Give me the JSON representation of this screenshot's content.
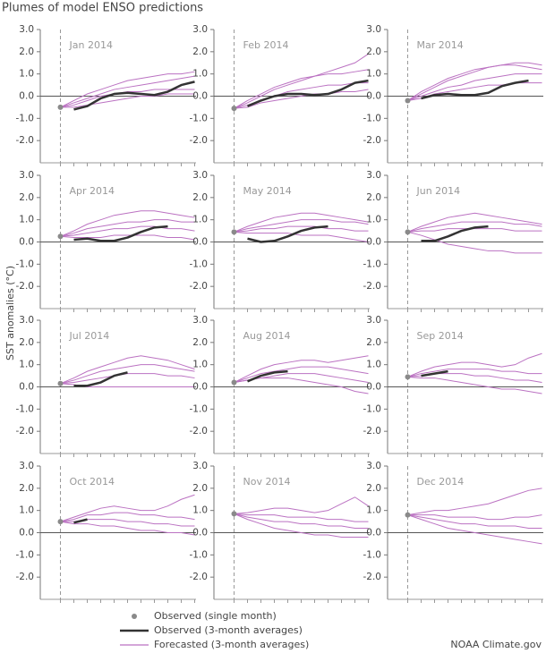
{
  "chart_data": {
    "type": "plume_grid",
    "title": "Plumes of model ENSO predictions",
    "y_label": "SST anomalies (°C)",
    "source": "NOAA Climate.gov",
    "ylim": [
      -3,
      3
    ],
    "yticks": [
      {
        "value": 3,
        "label": "3.0"
      },
      {
        "value": 2,
        "label": "2.0"
      },
      {
        "value": 1,
        "label": "1.0"
      },
      {
        "value": 0,
        "label": "0.0"
      },
      {
        "value": -1,
        "label": "-1.0"
      },
      {
        "value": -2,
        "label": "-2.0"
      }
    ],
    "xlim": [
      -1.5,
      10.1
    ],
    "xticks": [
      0,
      1,
      2,
      3,
      4,
      5,
      6,
      7,
      8,
      9,
      10
    ],
    "forecast_x": [
      0,
      1,
      2,
      3,
      4,
      5,
      6,
      7,
      8,
      9,
      10
    ],
    "legend_labels": {
      "observed_month": "Observed (single month)",
      "observed_3mo": "Observed (3-month averages)",
      "forecast": "Forecasted (3-month averages)"
    },
    "colors": {
      "observed_month": "#8a8a8a",
      "observed_3mo": "#333333",
      "forecast": "#bb72c2"
    },
    "panels": [
      {
        "label": "Jan 2014",
        "observed_month": {
          "x": 0,
          "value": -0.5
        },
        "observed_3mo": {
          "x": [
            1,
            2,
            3,
            4,
            5,
            6,
            7,
            8,
            9,
            10
          ],
          "values": [
            -0.6,
            -0.45,
            -0.1,
            0.1,
            0.15,
            0.1,
            0.05,
            0.2,
            0.5,
            0.65
          ]
        },
        "forecasts": [
          [
            -0.5,
            -0.3,
            -0.1,
            0.1,
            0.3,
            0.4,
            0.5,
            0.6,
            0.7,
            0.8,
            0.9
          ],
          [
            -0.5,
            -0.4,
            -0.2,
            0.0,
            0.1,
            0.2,
            0.2,
            0.3,
            0.3,
            0.3,
            0.3
          ],
          [
            -0.5,
            -0.2,
            0.1,
            0.3,
            0.5,
            0.7,
            0.8,
            0.9,
            1.0,
            1.0,
            1.1
          ],
          [
            -0.5,
            -0.5,
            -0.4,
            -0.3,
            -0.2,
            -0.1,
            0.0,
            0.0,
            0.1,
            0.1,
            0.1
          ]
        ]
      },
      {
        "label": "Feb 2014",
        "observed_month": {
          "x": 0,
          "value": -0.55
        },
        "observed_3mo": {
          "x": [
            1,
            2,
            3,
            4,
            5,
            6,
            7,
            8,
            9,
            10
          ],
          "values": [
            -0.45,
            -0.2,
            0.0,
            0.1,
            0.1,
            0.05,
            0.1,
            0.3,
            0.6,
            0.7
          ]
        },
        "forecasts": [
          [
            -0.55,
            -0.3,
            0.0,
            0.3,
            0.5,
            0.7,
            0.9,
            1.1,
            1.3,
            1.5,
            1.9
          ],
          [
            -0.55,
            -0.4,
            -0.2,
            0.0,
            0.2,
            0.3,
            0.4,
            0.5,
            0.5,
            0.6,
            0.6
          ],
          [
            -0.55,
            -0.2,
            0.1,
            0.4,
            0.6,
            0.8,
            0.9,
            1.0,
            1.0,
            1.1,
            1.2
          ],
          [
            -0.55,
            -0.5,
            -0.3,
            -0.2,
            -0.1,
            0.0,
            0.1,
            0.1,
            0.2,
            0.2,
            0.3
          ]
        ]
      },
      {
        "label": "Mar 2014",
        "observed_month": {
          "x": 0,
          "value": -0.2
        },
        "observed_3mo": {
          "x": [
            1,
            2,
            3,
            4,
            5,
            6,
            7,
            8,
            9
          ],
          "values": [
            -0.1,
            0.05,
            0.1,
            0.05,
            0.05,
            0.15,
            0.45,
            0.6,
            0.7
          ]
        },
        "forecasts": [
          [
            -0.2,
            0.1,
            0.4,
            0.7,
            0.9,
            1.1,
            1.3,
            1.4,
            1.5,
            1.5,
            1.4
          ],
          [
            -0.2,
            0.0,
            0.2,
            0.4,
            0.5,
            0.7,
            0.8,
            0.9,
            1.0,
            1.0,
            1.0
          ],
          [
            -0.2,
            0.2,
            0.5,
            0.8,
            1.0,
            1.2,
            1.3,
            1.4,
            1.4,
            1.3,
            1.2
          ],
          [
            -0.2,
            -0.1,
            0.1,
            0.2,
            0.3,
            0.4,
            0.5,
            0.5,
            0.6,
            0.6,
            0.6
          ]
        ]
      },
      {
        "label": "Apr 2014",
        "observed_month": {
          "x": 0,
          "value": 0.25
        },
        "observed_3mo": {
          "x": [
            1,
            2,
            3,
            4,
            5,
            6,
            7,
            8
          ],
          "values": [
            0.1,
            0.15,
            0.05,
            0.05,
            0.2,
            0.45,
            0.65,
            0.7
          ]
        },
        "forecasts": [
          [
            0.25,
            0.5,
            0.8,
            1.0,
            1.2,
            1.3,
            1.4,
            1.4,
            1.3,
            1.2,
            1.1
          ],
          [
            0.25,
            0.4,
            0.6,
            0.7,
            0.8,
            0.9,
            0.9,
            1.0,
            1.0,
            0.9,
            0.9
          ],
          [
            0.25,
            0.3,
            0.4,
            0.5,
            0.6,
            0.6,
            0.7,
            0.7,
            0.6,
            0.6,
            0.5
          ],
          [
            0.25,
            0.2,
            0.2,
            0.2,
            0.3,
            0.3,
            0.3,
            0.3,
            0.2,
            0.2,
            0.1
          ]
        ]
      },
      {
        "label": "May 2014",
        "observed_month": {
          "x": 0,
          "value": 0.45
        },
        "observed_3mo": {
          "x": [
            1,
            2,
            3,
            4,
            5,
            6,
            7
          ],
          "values": [
            0.15,
            0.0,
            0.05,
            0.25,
            0.5,
            0.65,
            0.7
          ]
        },
        "forecasts": [
          [
            0.45,
            0.7,
            0.9,
            1.1,
            1.2,
            1.3,
            1.3,
            1.2,
            1.1,
            1.0,
            0.9
          ],
          [
            0.45,
            0.6,
            0.7,
            0.8,
            0.9,
            1.0,
            1.0,
            1.0,
            0.9,
            0.9,
            0.8
          ],
          [
            0.45,
            0.5,
            0.6,
            0.6,
            0.7,
            0.7,
            0.7,
            0.6,
            0.6,
            0.5,
            0.5
          ],
          [
            0.45,
            0.4,
            0.4,
            0.4,
            0.4,
            0.3,
            0.3,
            0.3,
            0.2,
            0.1,
            0.0
          ]
        ]
      },
      {
        "label": "Jun 2014",
        "observed_month": {
          "x": 0,
          "value": 0.45
        },
        "observed_3mo": {
          "x": [
            1,
            2,
            3,
            4,
            5,
            6
          ],
          "values": [
            0.05,
            0.05,
            0.25,
            0.5,
            0.65,
            0.7
          ]
        },
        "forecasts": [
          [
            0.45,
            0.7,
            0.9,
            1.1,
            1.2,
            1.3,
            1.2,
            1.1,
            1.0,
            0.9,
            0.8
          ],
          [
            0.45,
            0.6,
            0.7,
            0.8,
            0.9,
            0.9,
            0.9,
            0.9,
            0.8,
            0.8,
            0.7
          ],
          [
            0.45,
            0.5,
            0.5,
            0.6,
            0.6,
            0.6,
            0.6,
            0.6,
            0.5,
            0.5,
            0.5
          ],
          [
            0.45,
            0.3,
            0.1,
            -0.1,
            -0.2,
            -0.3,
            -0.4,
            -0.4,
            -0.5,
            -0.5,
            -0.5
          ]
        ]
      },
      {
        "label": "Jul 2014",
        "observed_month": {
          "x": 0,
          "value": 0.15
        },
        "observed_3mo": {
          "x": [
            1,
            2,
            3,
            4,
            5
          ],
          "values": [
            0.05,
            0.05,
            0.2,
            0.5,
            0.65
          ]
        },
        "forecasts": [
          [
            0.15,
            0.4,
            0.7,
            0.9,
            1.1,
            1.3,
            1.4,
            1.3,
            1.2,
            1.0,
            0.8
          ],
          [
            0.15,
            0.3,
            0.5,
            0.7,
            0.8,
            0.9,
            1.0,
            1.0,
            0.9,
            0.8,
            0.7
          ],
          [
            0.15,
            0.2,
            0.3,
            0.4,
            0.5,
            0.6,
            0.6,
            0.6,
            0.5,
            0.5,
            0.4
          ],
          [
            0.15,
            0.1,
            0.0,
            0.0,
            0.0,
            0.0,
            0.0,
            0.0,
            0.0,
            0.0,
            0.0
          ]
        ]
      },
      {
        "label": "Aug 2014",
        "observed_month": {
          "x": 0,
          "value": 0.2
        },
        "observed_3mo": {
          "x": [
            1,
            2,
            3,
            4
          ],
          "values": [
            0.25,
            0.5,
            0.65,
            0.7
          ]
        },
        "forecasts": [
          [
            0.2,
            0.5,
            0.8,
            1.0,
            1.1,
            1.2,
            1.2,
            1.1,
            1.2,
            1.3,
            1.4
          ],
          [
            0.2,
            0.4,
            0.6,
            0.7,
            0.8,
            0.9,
            0.9,
            0.9,
            0.8,
            0.7,
            0.6
          ],
          [
            0.2,
            0.3,
            0.4,
            0.5,
            0.6,
            0.6,
            0.6,
            0.5,
            0.4,
            0.3,
            0.2
          ],
          [
            0.2,
            0.3,
            0.4,
            0.4,
            0.4,
            0.3,
            0.2,
            0.1,
            0.0,
            -0.2,
            -0.3
          ]
        ]
      },
      {
        "label": "Sep 2014",
        "observed_month": {
          "x": 0,
          "value": 0.45
        },
        "observed_3mo": {
          "x": [
            1,
            2,
            3
          ],
          "values": [
            0.5,
            0.6,
            0.7
          ]
        },
        "forecasts": [
          [
            0.45,
            0.7,
            0.9,
            1.0,
            1.1,
            1.1,
            1.0,
            0.9,
            1.0,
            1.3,
            1.5
          ],
          [
            0.45,
            0.6,
            0.7,
            0.8,
            0.8,
            0.8,
            0.8,
            0.7,
            0.7,
            0.6,
            0.6
          ],
          [
            0.45,
            0.5,
            0.6,
            0.6,
            0.6,
            0.5,
            0.5,
            0.4,
            0.3,
            0.3,
            0.2
          ],
          [
            0.45,
            0.4,
            0.4,
            0.3,
            0.2,
            0.1,
            0.0,
            -0.1,
            -0.1,
            -0.2,
            -0.3
          ]
        ]
      },
      {
        "label": "Oct 2014",
        "observed_month": {
          "x": 0,
          "value": 0.5
        },
        "observed_3mo": {
          "x": [
            1,
            2
          ],
          "values": [
            0.45,
            0.6
          ]
        },
        "forecasts": [
          [
            0.5,
            0.7,
            0.9,
            1.1,
            1.2,
            1.1,
            1.0,
            1.0,
            1.2,
            1.5,
            1.7
          ],
          [
            0.5,
            0.6,
            0.8,
            0.8,
            0.9,
            0.9,
            0.8,
            0.8,
            0.7,
            0.7,
            0.6
          ],
          [
            0.5,
            0.5,
            0.6,
            0.6,
            0.6,
            0.5,
            0.5,
            0.4,
            0.4,
            0.3,
            0.3
          ],
          [
            0.5,
            0.4,
            0.4,
            0.3,
            0.3,
            0.2,
            0.1,
            0.1,
            0.0,
            0.0,
            -0.1
          ]
        ]
      },
      {
        "label": "Nov 2014",
        "observed_month": {
          "x": 0,
          "value": 0.85
        },
        "forecasts": [
          [
            0.85,
            0.9,
            1.0,
            1.1,
            1.1,
            1.0,
            0.9,
            1.0,
            1.3,
            1.6,
            1.2
          ],
          [
            0.85,
            0.8,
            0.8,
            0.8,
            0.7,
            0.7,
            0.7,
            0.6,
            0.6,
            0.5,
            0.5
          ],
          [
            0.85,
            0.7,
            0.6,
            0.5,
            0.5,
            0.4,
            0.4,
            0.3,
            0.3,
            0.2,
            0.2
          ],
          [
            0.85,
            0.6,
            0.4,
            0.2,
            0.1,
            0.0,
            -0.1,
            -0.1,
            -0.2,
            -0.2,
            -0.2
          ]
        ]
      },
      {
        "label": "Dec 2014",
        "observed_month": {
          "x": 0,
          "value": 0.8
        },
        "forecasts": [
          [
            0.8,
            0.9,
            1.0,
            1.0,
            1.1,
            1.2,
            1.3,
            1.5,
            1.7,
            1.9,
            2.0
          ],
          [
            0.8,
            0.8,
            0.8,
            0.7,
            0.7,
            0.7,
            0.6,
            0.6,
            0.7,
            0.7,
            0.8
          ],
          [
            0.8,
            0.7,
            0.6,
            0.5,
            0.4,
            0.4,
            0.3,
            0.3,
            0.3,
            0.2,
            0.2
          ],
          [
            0.8,
            0.6,
            0.4,
            0.2,
            0.1,
            0.0,
            -0.1,
            -0.2,
            -0.3,
            -0.4,
            -0.5
          ]
        ]
      }
    ]
  }
}
